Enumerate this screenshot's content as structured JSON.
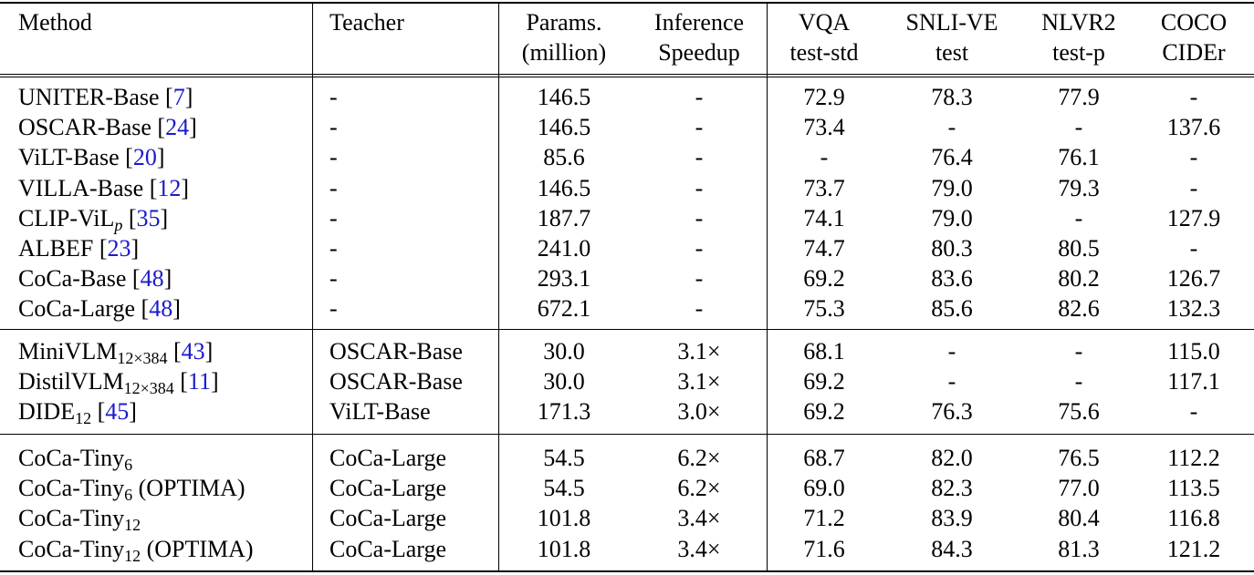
{
  "header": {
    "method": "Method",
    "teacher": "Teacher",
    "params": [
      "Params.",
      "(million)"
    ],
    "speedup": [
      "Inference",
      "Speedup"
    ],
    "vqa": [
      "VQA",
      "test-std"
    ],
    "snli": [
      "SNLI-VE",
      "test"
    ],
    "nlvr2": [
      "NLVR2",
      "test-p"
    ],
    "coco": [
      "COCO",
      "CIDEr"
    ]
  },
  "groups": [
    {
      "rows": [
        {
          "name": "UNITER-Base",
          "sub": "",
          "suffix": "",
          "ref": "7",
          "teacher": "-",
          "params": "146.5",
          "speedup": "-",
          "vqa": "72.9",
          "snli": "78.3",
          "nlvr2": "77.9",
          "coco": "-"
        },
        {
          "name": "OSCAR-Base",
          "sub": "",
          "suffix": "",
          "ref": "24",
          "teacher": "-",
          "params": "146.5",
          "speedup": "-",
          "vqa": "73.4",
          "snli": "-",
          "nlvr2": "-",
          "coco": "137.6"
        },
        {
          "name": "ViLT-Base",
          "sub": "",
          "suffix": "",
          "ref": "20",
          "teacher": "-",
          "params": "85.6",
          "speedup": "-",
          "vqa": "-",
          "snli": "76.4",
          "nlvr2": "76.1",
          "coco": "-"
        },
        {
          "name": "VILLA-Base",
          "sub": "",
          "suffix": "",
          "ref": "12",
          "teacher": "-",
          "params": "146.5",
          "speedup": "-",
          "vqa": "73.7",
          "snli": "79.0",
          "nlvr2": "79.3",
          "coco": "-"
        },
        {
          "name": "CLIP-ViL",
          "sub": "p",
          "subItalic": true,
          "suffix": "",
          "ref": "35",
          "teacher": "-",
          "params": "187.7",
          "speedup": "-",
          "vqa": "74.1",
          "snli": "79.0",
          "nlvr2": "-",
          "coco": "127.9"
        },
        {
          "name": "ALBEF",
          "sub": "",
          "suffix": "",
          "ref": "23",
          "teacher": "-",
          "params": "241.0",
          "speedup": "-",
          "vqa": "74.7",
          "snli": "80.3",
          "nlvr2": "80.5",
          "coco": "-"
        },
        {
          "name": "CoCa-Base",
          "sub": "",
          "suffix": "",
          "ref": "48",
          "teacher": "-",
          "params": "293.1",
          "speedup": "-",
          "vqa": "69.2",
          "snli": "83.6",
          "nlvr2": "80.2",
          "coco": "126.7"
        },
        {
          "name": "CoCa-Large",
          "sub": "",
          "suffix": "",
          "ref": "48",
          "teacher": "-",
          "params": "672.1",
          "speedup": "-",
          "vqa": "75.3",
          "snli": "85.6",
          "nlvr2": "82.6",
          "coco": "132.3"
        }
      ]
    },
    {
      "rows": [
        {
          "name": "MiniVLM",
          "sub": "12×384",
          "suffix": "",
          "ref": "43",
          "teacher": "OSCAR-Base",
          "params": "30.0",
          "speedup": "3.1×",
          "vqa": "68.1",
          "snli": "-",
          "nlvr2": "-",
          "coco": "115.0"
        },
        {
          "name": "DistilVLM",
          "sub": "12×384",
          "suffix": "",
          "ref": "11",
          "teacher": "OSCAR-Base",
          "params": "30.0",
          "speedup": "3.1×",
          "vqa": "69.2",
          "snli": "-",
          "nlvr2": "-",
          "coco": "117.1"
        },
        {
          "name": "DIDE",
          "sub": "12",
          "suffix": "",
          "ref": "45",
          "teacher": "ViLT-Base",
          "params": "171.3",
          "speedup": "3.0×",
          "vqa": "69.2",
          "snli": "76.3",
          "nlvr2": "75.6",
          "coco": "-"
        }
      ]
    },
    {
      "rows": [
        {
          "name": "CoCa-Tiny",
          "sub": "6",
          "suffix": "",
          "ref": "",
          "teacher": "CoCa-Large",
          "params": "54.5",
          "speedup": "6.2×",
          "vqa": "68.7",
          "snli": "82.0",
          "nlvr2": "76.5",
          "coco": "112.2"
        },
        {
          "name": "CoCa-Tiny",
          "sub": "6",
          "suffix": "(OPTIMA)",
          "ref": "",
          "teacher": "CoCa-Large",
          "params": "54.5",
          "speedup": "6.2×",
          "vqa": "69.0",
          "snli": "82.3",
          "nlvr2": "77.0",
          "coco": "113.5"
        },
        {
          "name": "CoCa-Tiny",
          "sub": "12",
          "suffix": "",
          "ref": "",
          "teacher": "CoCa-Large",
          "params": "101.8",
          "speedup": "3.4×",
          "vqa": "71.2",
          "snli": "83.9",
          "nlvr2": "80.4",
          "coco": "116.8"
        },
        {
          "name": "CoCa-Tiny",
          "sub": "12",
          "suffix": "(OPTIMA)",
          "ref": "",
          "teacher": "CoCa-Large",
          "params": "101.8",
          "speedup": "3.4×",
          "vqa": "71.6",
          "snli": "84.3",
          "nlvr2": "81.3",
          "coco": "121.2"
        }
      ]
    }
  ]
}
